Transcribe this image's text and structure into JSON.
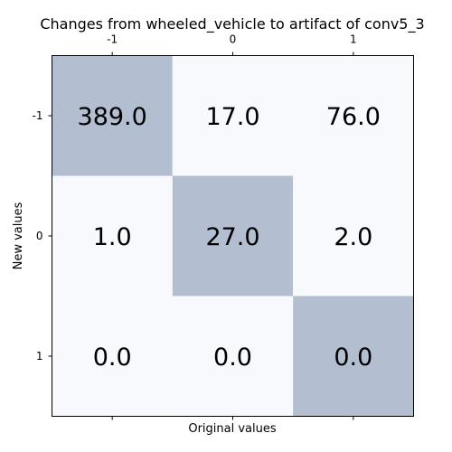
{
  "chart_data": {
    "type": "heatmap",
    "title": "Changes from wheeled_vehicle to artifact of conv5_3",
    "xlabel": "Original values",
    "ylabel": "New values",
    "x_ticks": [
      "-1",
      "0",
      "1"
    ],
    "y_ticks": [
      "-1",
      "0",
      "1"
    ],
    "x_ticks_position": "top",
    "grid": false,
    "values": [
      [
        389.0,
        17.0,
        76.0
      ],
      [
        1.0,
        27.0,
        2.0
      ],
      [
        0.0,
        0.0,
        0.0
      ]
    ],
    "cell_labels": [
      [
        "389.0",
        "17.0",
        "76.0"
      ],
      [
        "1.0",
        "27.0",
        "2.0"
      ],
      [
        "0.0",
        "0.0",
        "0.0"
      ]
    ],
    "highlight_color": "#b3bfd1",
    "base_color": "#f7f9fd"
  }
}
